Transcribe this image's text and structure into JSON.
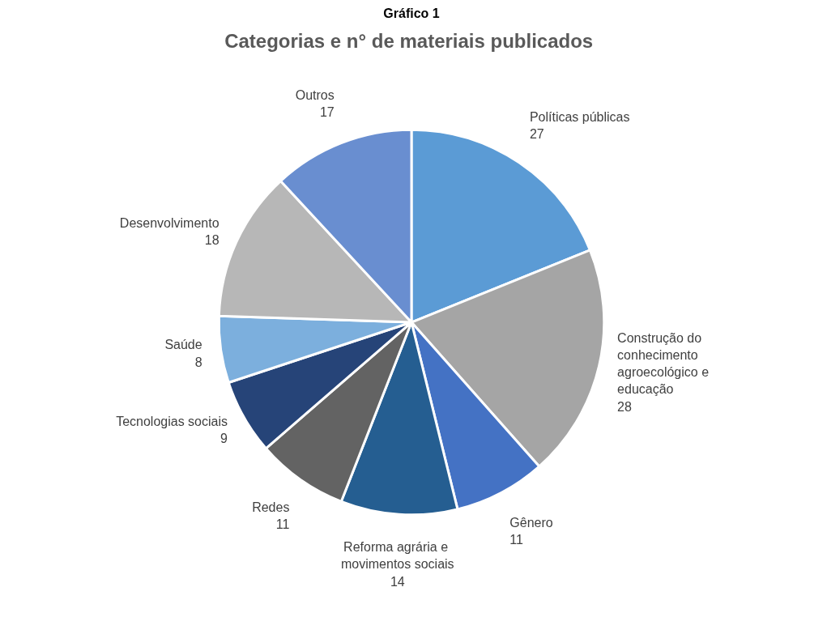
{
  "chart_data": {
    "type": "pie",
    "title": "Categorias  e n° de materiais publicados",
    "annotations": [
      "Gráfico 1"
    ],
    "categories": [
      "Políticas públicas",
      "Construção  do conhecimento agroecológico e educação",
      "Gênero",
      "Reforma  agrária e movimentos sociais",
      "Redes",
      "Tecnologias sociais",
      "Saúde",
      "Desenvolvimento",
      "Outros"
    ],
    "values": [
      27,
      28,
      11,
      14,
      11,
      9,
      8,
      18,
      17
    ],
    "colors": [
      "#5b9bd5",
      "#a5a5a5",
      "#4472c4",
      "#255e91",
      "#636363",
      "#264478",
      "#7cafdd",
      "#b7b7b7",
      "#698ed0"
    ],
    "data_labels": true
  }
}
